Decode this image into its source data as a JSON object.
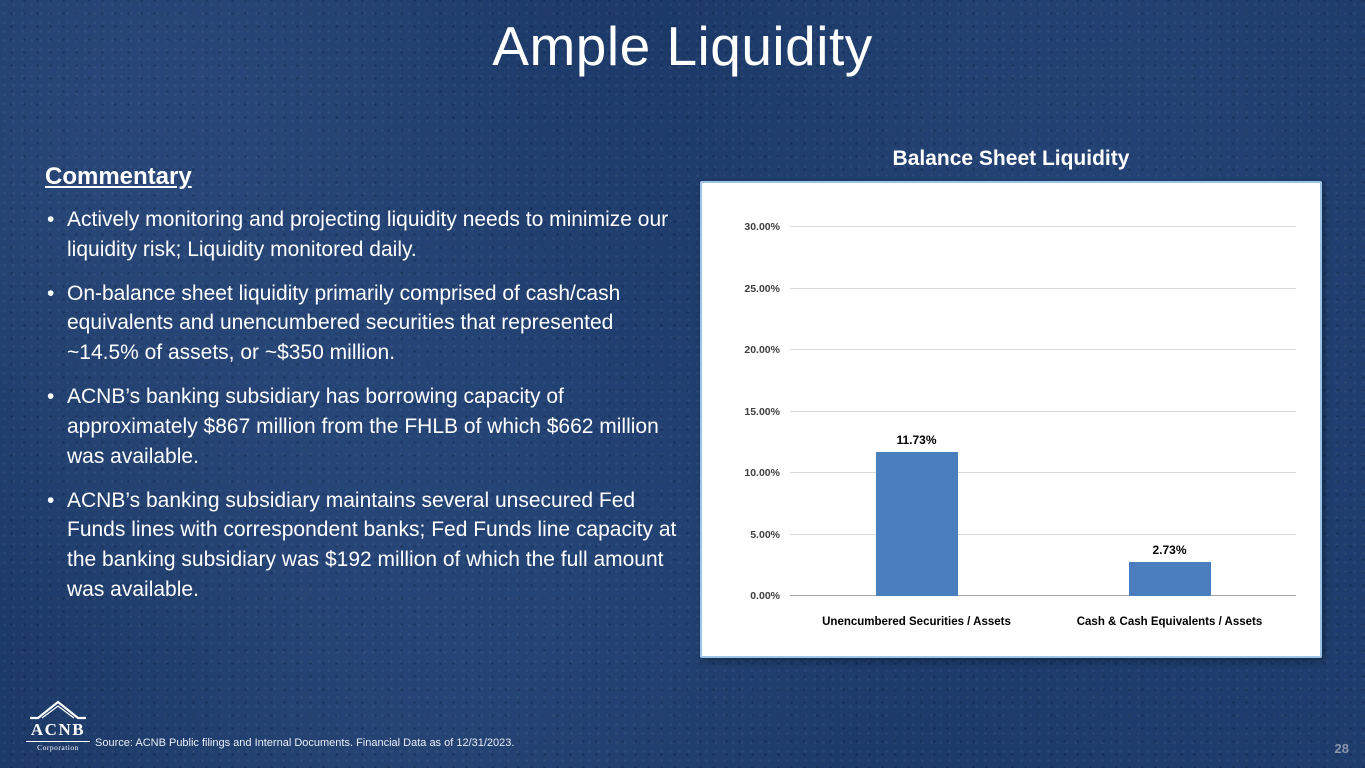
{
  "slide": {
    "title": "Ample Liquidity",
    "page_number": "28",
    "source_text": "Source:  ACNB Public filings and Internal Documents. Financial Data as of 12/31/2023.",
    "logo": {
      "name": "ACNB",
      "subtitle": "Corporation"
    }
  },
  "commentary": {
    "heading": "Commentary",
    "bullets": [
      "Actively monitoring and projecting liquidity needs to minimize our liquidity risk; Liquidity monitored daily.",
      "On-balance sheet liquidity primarily comprised of cash/cash equivalents and unencumbered securities that represented ~14.5% of assets, or ~$350 million.",
      "ACNB’s banking subsidiary has borrowing capacity of approximately $867 million from the FHLB of which $662 million was available.",
      "ACNB’s banking subsidiary maintains several unsecured Fed Funds lines with correspondent banks; Fed Funds line capacity at the banking subsidiary was $192 million of which the full amount was available."
    ]
  },
  "chart_data": {
    "type": "bar",
    "title": "Balance Sheet Liquidity",
    "categories": [
      "Unencumbered Securities / Assets",
      "Cash  & Cash Equivalents / Assets"
    ],
    "values": [
      11.73,
      2.73
    ],
    "value_labels": [
      "11.73%",
      "2.73%"
    ],
    "ylim": [
      0,
      30
    ],
    "yticks": [
      {
        "value": 30,
        "label": "30.00%"
      },
      {
        "value": 25,
        "label": "25.00%"
      },
      {
        "value": 20,
        "label": "20.00%"
      },
      {
        "value": 15,
        "label": "15.00%"
      },
      {
        "value": 10,
        "label": "10.00%"
      },
      {
        "value": 5,
        "label": "5.00%"
      },
      {
        "value": 0,
        "label": "0.00%"
      }
    ],
    "bar_color": "#4A7EBE",
    "grid": true,
    "legend": false,
    "xlabel": "",
    "ylabel": ""
  }
}
